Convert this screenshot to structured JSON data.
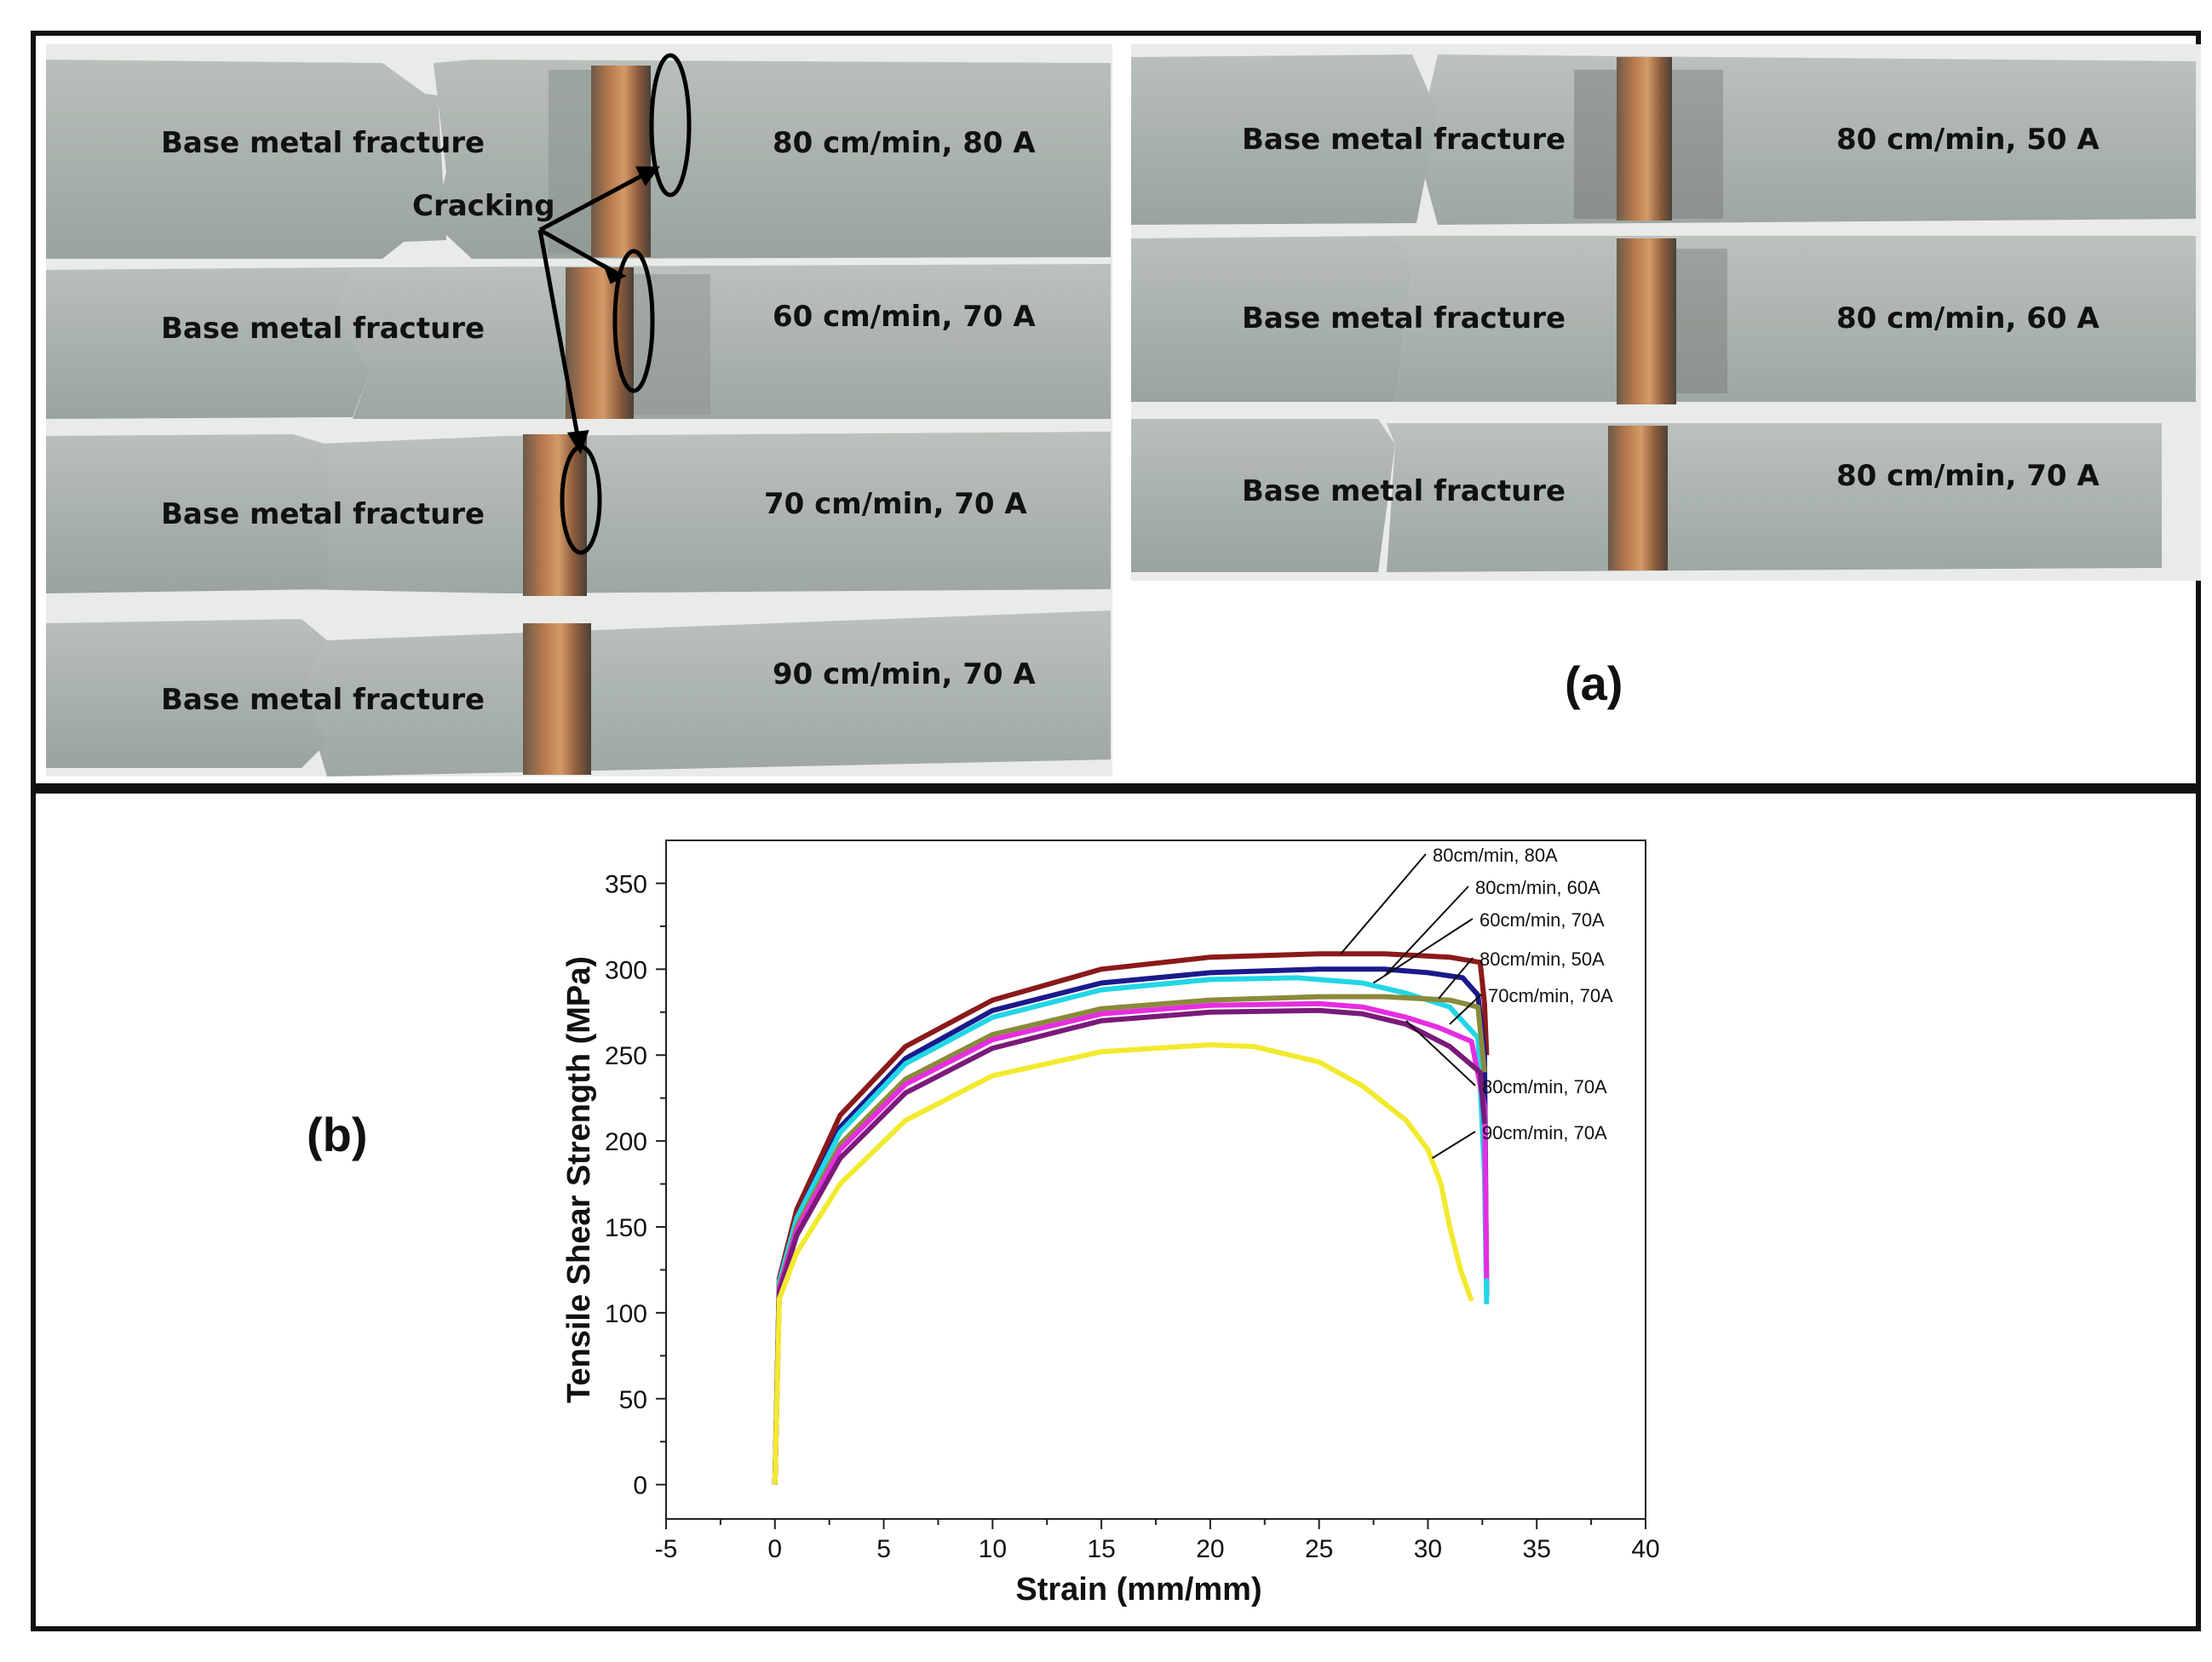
{
  "panel_a": {
    "tag": "(a)",
    "callout": "Cracking",
    "left_strips": [
      {
        "fracture": "Base metal fracture",
        "condition": "80 cm/min, 80 A"
      },
      {
        "fracture": "Base metal fracture",
        "condition": "60 cm/min, 70 A"
      },
      {
        "fracture": "Base metal fracture",
        "condition": "70 cm/min, 70 A"
      },
      {
        "fracture": "Base metal fracture",
        "condition": "90 cm/min, 70 A"
      }
    ],
    "right_strips": [
      {
        "fracture": "Base metal fracture",
        "condition": "80 cm/min, 50 A"
      },
      {
        "fracture": "Base metal fracture",
        "condition": "80 cm/min, 60 A"
      },
      {
        "fracture": "Base metal fracture",
        "condition": "80 cm/min, 70 A"
      }
    ]
  },
  "panel_b": {
    "tag": "(b)"
  },
  "chart_data": {
    "type": "line",
    "xlabel": "Strain (mm/mm)",
    "ylabel": "Tensile Shear Strength (MPa)",
    "xlim": [
      -5,
      40
    ],
    "ylim": [
      -20,
      375
    ],
    "xticks": [
      -5,
      0,
      5,
      10,
      15,
      20,
      25,
      30,
      35,
      40
    ],
    "yticks": [
      0,
      50,
      100,
      150,
      200,
      250,
      300,
      350
    ],
    "grid": false,
    "legend_placement": "right, callout labels",
    "series": [
      {
        "name": "80cm/min, 80A",
        "color": "#8b1a1a",
        "x": [
          0,
          0.2,
          1,
          3,
          6,
          10,
          15,
          20,
          25,
          28,
          31,
          32.4,
          32.6,
          32.7
        ],
        "y": [
          0,
          120,
          160,
          215,
          255,
          282,
          300,
          307,
          309,
          309,
          307,
          304,
          280,
          250
        ]
      },
      {
        "name": "80cm/min, 60A",
        "color": "#1a1a8b",
        "x": [
          0,
          0.2,
          1,
          3,
          6,
          10,
          15,
          20,
          25,
          28,
          30,
          31.6,
          32.3,
          32.6,
          32.7
        ],
        "y": [
          0,
          118,
          155,
          208,
          248,
          276,
          292,
          298,
          300,
          300,
          298,
          295,
          285,
          250,
          110
        ]
      },
      {
        "name": "60cm/min, 70A",
        "color": "#22d6e6",
        "x": [
          0,
          0.2,
          1,
          3,
          6,
          10,
          15,
          20,
          24,
          27,
          29,
          31,
          32.3,
          32.6,
          32.7
        ],
        "y": [
          0,
          118,
          155,
          205,
          245,
          272,
          288,
          294,
          295,
          292,
          286,
          278,
          260,
          180,
          105
        ]
      },
      {
        "name": "80cm/min, 50A",
        "color": "#8a8a3a",
        "x": [
          0,
          0.2,
          1,
          3,
          6,
          10,
          15,
          20,
          25,
          28,
          31,
          32.3,
          32.6
        ],
        "y": [
          0,
          115,
          150,
          198,
          236,
          262,
          277,
          282,
          284,
          284,
          282,
          278,
          240
        ]
      },
      {
        "name": "70cm/min, 70A",
        "color": "#e62ee0",
        "x": [
          0,
          0.2,
          1,
          3,
          6,
          10,
          15,
          20,
          25,
          27,
          29,
          30.5,
          32,
          32.6,
          32.7
        ],
        "y": [
          0,
          114,
          148,
          195,
          233,
          259,
          274,
          279,
          280,
          278,
          272,
          266,
          258,
          220,
          120
        ]
      },
      {
        "name": "80cm/min, 70A",
        "color": "#7a1a7a",
        "x": [
          0,
          0.2,
          1,
          3,
          6,
          10,
          15,
          20,
          25,
          27,
          29,
          31,
          32.4,
          32.6
        ],
        "y": [
          0,
          112,
          145,
          190,
          228,
          254,
          270,
          275,
          276,
          274,
          268,
          255,
          240,
          210
        ]
      },
      {
        "name": "90cm/min, 70A",
        "color": "#f2ea2e",
        "x": [
          0,
          0.2,
          1,
          3,
          6,
          10,
          15,
          20,
          22,
          25,
          27,
          29,
          30,
          30.6,
          31,
          31.5,
          32
        ],
        "y": [
          0,
          108,
          135,
          175,
          212,
          238,
          252,
          256,
          255,
          246,
          232,
          212,
          195,
          175,
          150,
          125,
          107
        ]
      }
    ]
  }
}
